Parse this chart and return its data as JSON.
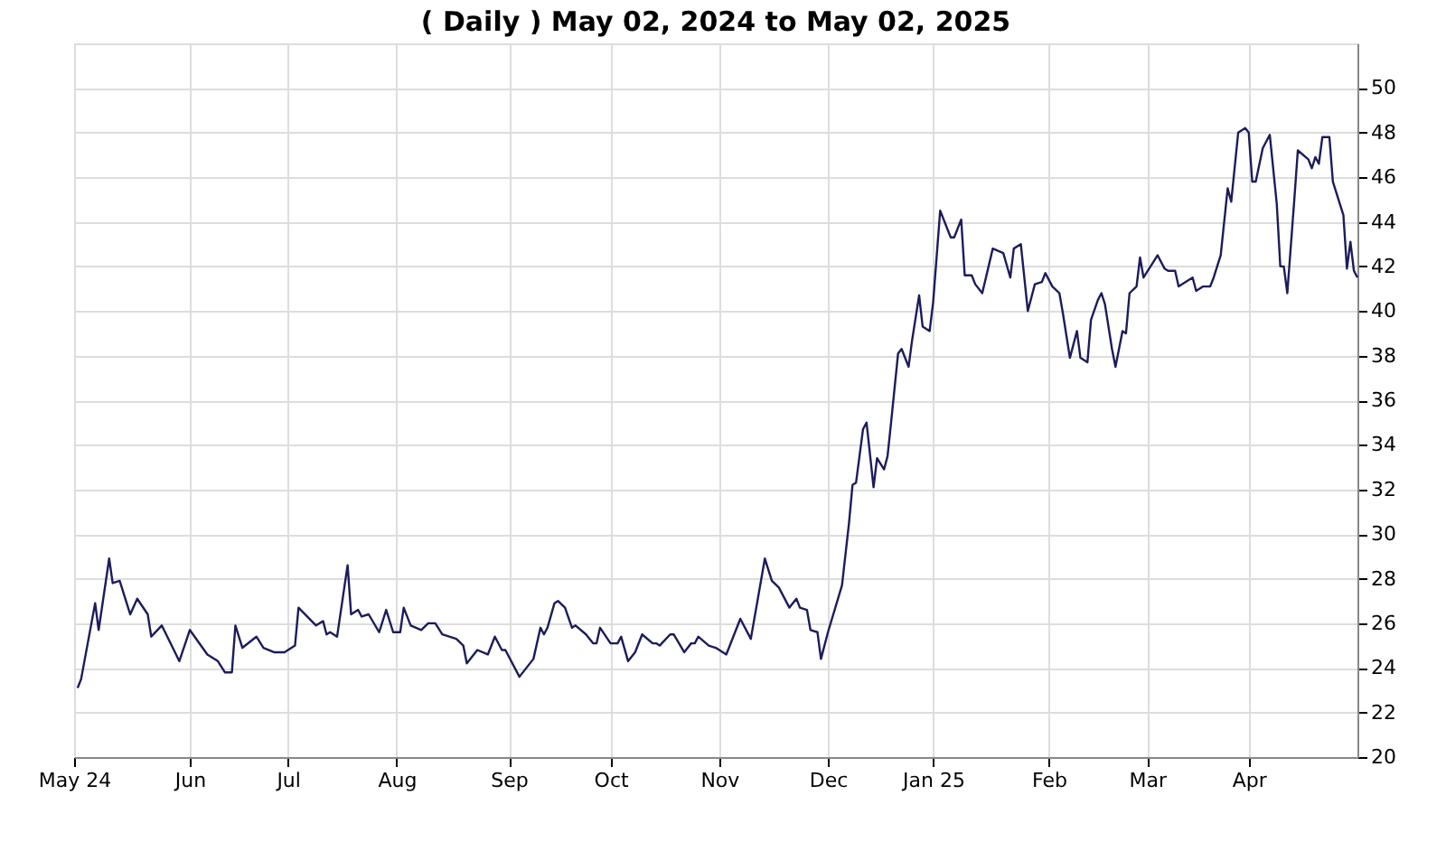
{
  "chart_data": {
    "type": "line",
    "title": "( Daily ) May 02, 2024 to May 02, 2025",
    "x": [
      "2024-05-02",
      "2024-05-03",
      "2024-05-07",
      "2024-05-08",
      "2024-05-11",
      "2024-05-12",
      "2024-05-14",
      "2024-05-16",
      "2024-05-17",
      "2024-05-19",
      "2024-05-22",
      "2024-05-23",
      "2024-05-26",
      "2024-05-31",
      "2024-06-03",
      "2024-06-08",
      "2024-06-11",
      "2024-06-13",
      "2024-06-15",
      "2024-06-16",
      "2024-06-18",
      "2024-06-22",
      "2024-06-24",
      "2024-06-27",
      "2024-06-30",
      "2024-07-03",
      "2024-07-04",
      "2024-07-09",
      "2024-07-11",
      "2024-07-12",
      "2024-07-13",
      "2024-07-15",
      "2024-07-18",
      "2024-07-19",
      "2024-07-21",
      "2024-07-22",
      "2024-07-24",
      "2024-07-27",
      "2024-07-29",
      "2024-07-31",
      "2024-08-02",
      "2024-08-03",
      "2024-08-05",
      "2024-08-08",
      "2024-08-10",
      "2024-08-12",
      "2024-08-14",
      "2024-08-18",
      "2024-08-20",
      "2024-08-21",
      "2024-08-24",
      "2024-08-27",
      "2024-08-29",
      "2024-08-31",
      "2024-09-01",
      "2024-09-05",
      "2024-09-09",
      "2024-09-11",
      "2024-09-12",
      "2024-09-13",
      "2024-09-15",
      "2024-09-16",
      "2024-09-18",
      "2024-09-20",
      "2024-09-21",
      "2024-09-24",
      "2024-09-26",
      "2024-09-27",
      "2024-09-28",
      "2024-10-01",
      "2024-10-03",
      "2024-10-04",
      "2024-10-06",
      "2024-10-08",
      "2024-10-10",
      "2024-10-13",
      "2024-10-14",
      "2024-10-15",
      "2024-10-18",
      "2024-10-19",
      "2024-10-22",
      "2024-10-24",
      "2024-10-25",
      "2024-10-26",
      "2024-10-29",
      "2024-10-31",
      "2024-11-03",
      "2024-11-07",
      "2024-11-10",
      "2024-11-14",
      "2024-11-16",
      "2024-11-18",
      "2024-11-21",
      "2024-11-23",
      "2024-11-24",
      "2024-11-26",
      "2024-11-27",
      "2024-11-29",
      "2024-11-30",
      "2024-12-02",
      "2024-12-06",
      "2024-12-08",
      "2024-12-09",
      "2024-12-10",
      "2024-12-12",
      "2024-12-13",
      "2024-12-15",
      "2024-12-16",
      "2024-12-18",
      "2024-12-19",
      "2024-12-20",
      "2024-12-22",
      "2024-12-23",
      "2024-12-25",
      "2024-12-26",
      "2024-12-28",
      "2024-12-29",
      "2024-12-31",
      "2025-01-01",
      "2025-01-03",
      "2025-01-06",
      "2025-01-07",
      "2025-01-09",
      "2025-01-10",
      "2025-01-12",
      "2025-01-13",
      "2025-01-15",
      "2025-01-18",
      "2025-01-21",
      "2025-01-23",
      "2025-01-24",
      "2025-01-26",
      "2025-01-28",
      "2025-01-30",
      "2025-02-01",
      "2025-02-02",
      "2025-02-04",
      "2025-02-06",
      "2025-02-07",
      "2025-02-09",
      "2025-02-11",
      "2025-02-12",
      "2025-02-14",
      "2025-02-15",
      "2025-02-17",
      "2025-02-18",
      "2025-02-19",
      "2025-02-21",
      "2025-02-22",
      "2025-02-24",
      "2025-02-25",
      "2025-02-26",
      "2025-02-28",
      "2025-03-01",
      "2025-03-02",
      "2025-03-04",
      "2025-03-06",
      "2025-03-08",
      "2025-03-09",
      "2025-03-11",
      "2025-03-12",
      "2025-03-16",
      "2025-03-17",
      "2025-03-19",
      "2025-03-21",
      "2025-03-22",
      "2025-03-24",
      "2025-03-26",
      "2025-03-27",
      "2025-03-29",
      "2025-03-31",
      "2025-04-01",
      "2025-04-02",
      "2025-04-03",
      "2025-04-05",
      "2025-04-07",
      "2025-04-09",
      "2025-04-10",
      "2025-04-11",
      "2025-04-12",
      "2025-04-14",
      "2025-04-15",
      "2025-04-18",
      "2025-04-19",
      "2025-04-20",
      "2025-04-21",
      "2025-04-22",
      "2025-04-24",
      "2025-04-25",
      "2025-04-28",
      "2025-04-29",
      "2025-04-30",
      "2025-05-01",
      "2025-05-02"
    ],
    "series": [
      {
        "color": "#1c1c5c",
        "values": [
          23.1,
          23.5,
          26.9,
          25.7,
          28.9,
          27.8,
          27.9,
          26.9,
          26.4,
          27.1,
          26.4,
          25.4,
          25.9,
          24.3,
          25.7,
          24.6,
          24.3,
          23.8,
          23.8,
          25.9,
          24.9,
          25.4,
          24.9,
          24.7,
          24.7,
          25.0,
          26.7,
          25.9,
          26.1,
          25.5,
          25.6,
          25.4,
          28.6,
          26.4,
          26.6,
          26.3,
          26.4,
          25.6,
          26.6,
          25.6,
          25.6,
          26.7,
          25.9,
          25.7,
          26.0,
          26.0,
          25.5,
          25.3,
          25.0,
          24.2,
          24.8,
          24.6,
          25.4,
          24.8,
          24.8,
          23.6,
          24.4,
          25.8,
          25.5,
          25.8,
          26.9,
          27.0,
          26.7,
          25.8,
          25.9,
          25.5,
          25.1,
          25.1,
          25.8,
          25.1,
          25.1,
          25.4,
          24.3,
          24.7,
          25.5,
          25.1,
          25.1,
          25.0,
          25.5,
          25.5,
          24.7,
          25.1,
          25.1,
          25.4,
          25.0,
          24.9,
          24.6,
          26.2,
          25.3,
          28.9,
          27.9,
          27.6,
          26.7,
          27.1,
          26.7,
          26.6,
          25.7,
          25.6,
          24.4,
          25.6,
          27.7,
          30.5,
          32.2,
          32.3,
          34.7,
          35.0,
          32.1,
          33.4,
          32.9,
          33.5,
          35.0,
          38.1,
          38.3,
          37.5,
          38.7,
          40.7,
          39.3,
          39.1,
          40.4,
          44.5,
          43.3,
          43.3,
          44.1,
          41.6,
          41.6,
          41.2,
          40.8,
          42.8,
          42.6,
          41.5,
          42.8,
          43.0,
          40.0,
          41.2,
          41.3,
          41.7,
          41.1,
          40.8,
          39.9,
          37.9,
          39.1,
          37.9,
          37.7,
          39.6,
          40.5,
          40.8,
          40.3,
          38.3,
          37.5,
          39.1,
          39.0,
          40.8,
          41.1,
          42.4,
          41.5,
          42.0,
          42.5,
          41.9,
          41.8,
          41.8,
          41.1,
          41.5,
          40.9,
          41.1,
          41.1,
          41.5,
          42.5,
          45.5,
          44.9,
          48.0,
          48.2,
          48.0,
          45.8,
          45.8,
          47.3,
          47.9,
          44.8,
          42.0,
          42.0,
          40.8,
          45.0,
          47.2,
          46.8,
          46.4,
          46.9,
          46.6,
          47.8,
          47.8,
          45.8,
          44.3,
          41.9,
          43.1,
          41.8,
          41.5
        ]
      }
    ],
    "xlim": [
      "2024-05-01",
      "2025-05-02"
    ],
    "xticks": [
      {
        "value": "2024-05-01",
        "label": "May 24"
      },
      {
        "value": "2024-06-03",
        "label": "Jun"
      },
      {
        "value": "2024-07-01",
        "label": "Jul"
      },
      {
        "value": "2024-08-01",
        "label": "Aug"
      },
      {
        "value": "2024-09-02",
        "label": "Sep"
      },
      {
        "value": "2024-10-01",
        "label": "Oct"
      },
      {
        "value": "2024-11-01",
        "label": "Nov"
      },
      {
        "value": "2024-12-02",
        "label": "Dec"
      },
      {
        "value": "2025-01-01",
        "label": "Jan 25"
      },
      {
        "value": "2025-02-03",
        "label": "Feb"
      },
      {
        "value": "2025-03-03",
        "label": "Mar"
      },
      {
        "value": "2025-04-01",
        "label": "Apr"
      }
    ],
    "ylim": [
      20,
      52
    ],
    "yticks": [
      20,
      22,
      24,
      26,
      28,
      30,
      32,
      34,
      36,
      38,
      40,
      42,
      44,
      46,
      48,
      50
    ],
    "grid": true,
    "marker": "none",
    "line_style": "solid"
  }
}
